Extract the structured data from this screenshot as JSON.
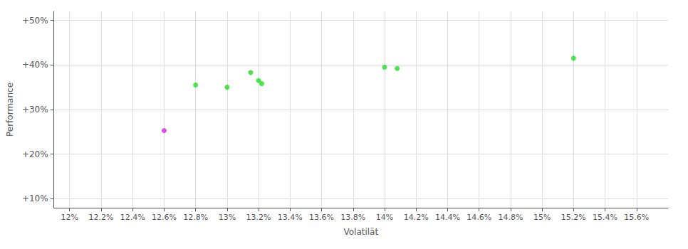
{
  "chart_data": {
    "type": "scatter",
    "xlabel": "Volatilät",
    "ylabel": "Performance",
    "series": [
      {
        "color": "#22dd22",
        "values": [
          [
            12.8,
            35.5
          ],
          [
            13.0,
            35.0
          ],
          [
            13.15,
            38.3
          ],
          [
            13.2,
            36.5
          ],
          [
            13.22,
            35.8
          ],
          [
            14.0,
            39.5
          ],
          [
            14.08,
            39.2
          ],
          [
            15.2,
            41.5
          ]
        ]
      },
      {
        "color": "#dd22dd",
        "values": [
          [
            12.6,
            25.3
          ]
        ]
      }
    ],
    "xlim": [
      11.9,
      15.8
    ],
    "ylim": [
      8.0,
      52.0
    ],
    "xticks": [
      {
        "value": 12.0,
        "label": "12%"
      },
      {
        "value": 12.2,
        "label": "12.2%"
      },
      {
        "value": 12.4,
        "label": "12.4%"
      },
      {
        "value": 12.6,
        "label": "12.6%"
      },
      {
        "value": 12.8,
        "label": "12.8%"
      },
      {
        "value": 13.0,
        "label": "13%"
      },
      {
        "value": 13.2,
        "label": "13.2%"
      },
      {
        "value": 13.4,
        "label": "13.4%"
      },
      {
        "value": 13.6,
        "label": "13.6%"
      },
      {
        "value": 13.8,
        "label": "13.8%"
      },
      {
        "value": 14.0,
        "label": "14%"
      },
      {
        "value": 14.2,
        "label": "14.2%"
      },
      {
        "value": 14.4,
        "label": "14.4%"
      },
      {
        "value": 14.6,
        "label": "14.6%"
      },
      {
        "value": 14.8,
        "label": "14.8%"
      },
      {
        "value": 15.0,
        "label": "15%"
      },
      {
        "value": 15.2,
        "label": "15.2%"
      },
      {
        "value": 15.4,
        "label": "15.4%"
      },
      {
        "value": 15.6,
        "label": "15.6%"
      }
    ],
    "yticks": [
      {
        "value": 10,
        "label": "+10%"
      },
      {
        "value": 20,
        "label": "+20%"
      },
      {
        "value": 30,
        "label": "+30%"
      },
      {
        "value": 40,
        "label": "+40%"
      },
      {
        "value": 50,
        "label": "+50%"
      }
    ],
    "grid": true
  }
}
